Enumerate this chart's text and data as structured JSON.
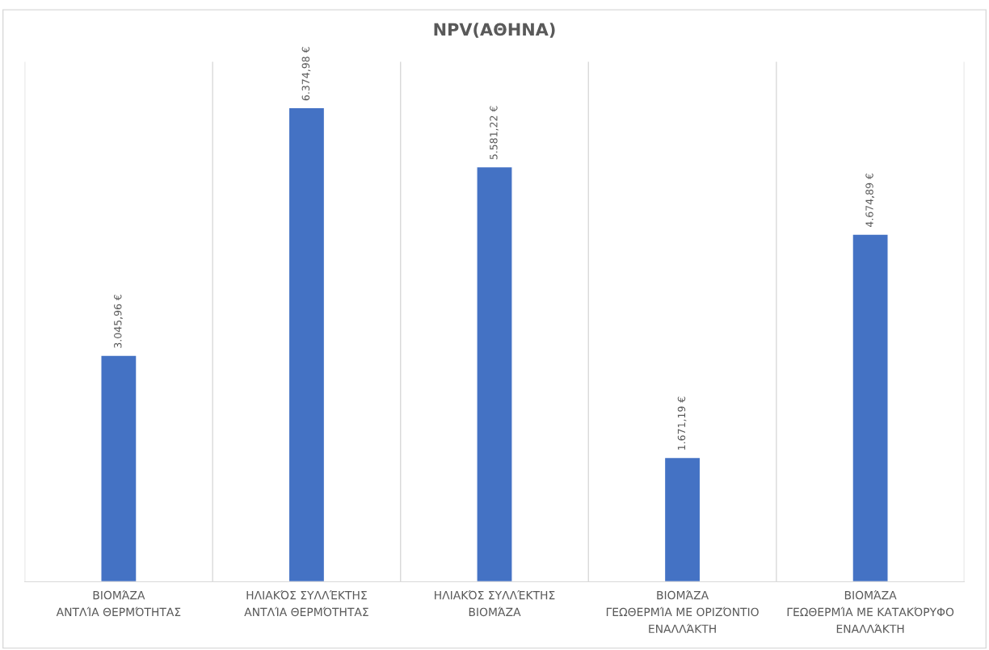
{
  "chart_data": {
    "type": "bar",
    "title": "NPV(ΑΘΗΝΑ)",
    "categories": [
      "ΒΙΟΜΆΖΑ\nΑΝΤΛΊΑ ΘΕΡΜΌΤΗΤΑΣ",
      "ΗΛΙΑΚΌΣ ΣΥΛΛΈΚΤΗΣ\nΑΝΤΛΊΑ ΘΕΡΜΌΤΗΤΑΣ",
      "ΗΛΙΑΚΌΣ ΣΥΛΛΈΚΤΗΣ\nΒΙΟΜΆΖΑ",
      "ΒΙΟΜΆΖΑ\nΓΕΩΘΕΡΜΊΑ ΜΕ ΟΡΙΖΌΝΤΙΟ\nΕΝΑΛΛΆΚΤΗ",
      "ΒΙΟΜΆΖΑ\nΓΕΩΘΕΡΜΊΑ ΜΕ ΚΑΤΑΚΌΡΥΦΟ\nΕΝΑΛΛΆΚΤΗ"
    ],
    "values": [
      3045.96,
      6374.98,
      5581.22,
      1671.19,
      4674.89
    ],
    "value_labels": [
      "3.045,96 €",
      "6.374,98 €",
      "5.581,22 €",
      "1.671,19 €",
      "4.674,89 €"
    ],
    "color": "#4472c4",
    "grid": "x",
    "legend": false
  }
}
